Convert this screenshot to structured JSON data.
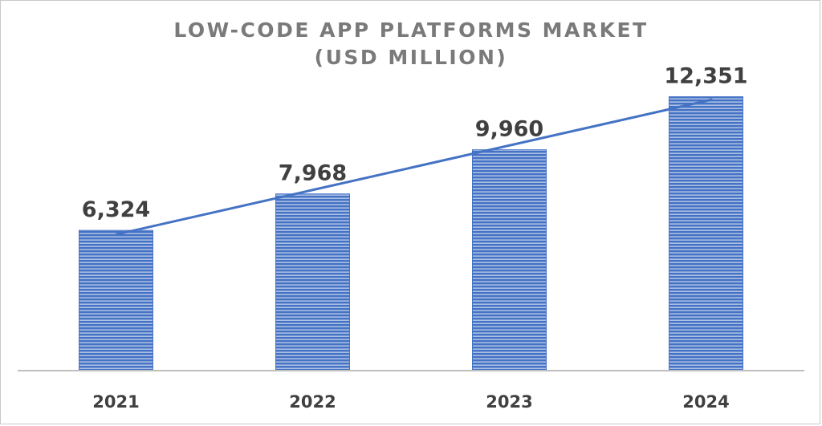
{
  "chart_data": {
    "type": "bar",
    "title_lines": [
      "LOW-CODE APP PLATFORMS MARKET",
      "(USD MILLION)"
    ],
    "categories": [
      "2021",
      "2022",
      "2023",
      "2024"
    ],
    "values": [
      6324,
      7968,
      9960,
      12351
    ],
    "value_labels": [
      "6,324",
      "7,968",
      "9,960",
      "12,351"
    ],
    "ylim": [
      0,
      14000
    ],
    "grid": false,
    "legend": "none",
    "trendline": true,
    "colors": {
      "bar": "#4472c4",
      "bar_stripe": "#ffffff",
      "trendline": "#4472c4",
      "axis": "#bfbfbf",
      "label_text": "#404040",
      "title_text": "#7a7a7a"
    }
  }
}
